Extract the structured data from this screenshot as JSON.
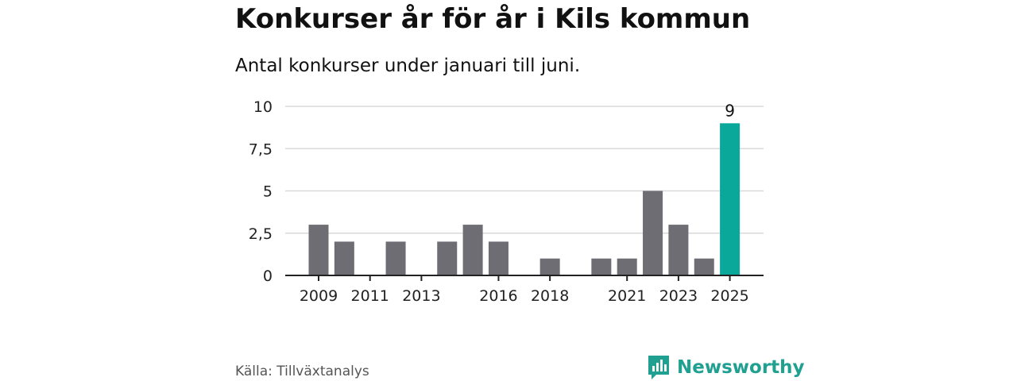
{
  "title": "Konkurser år för år i Kils kommun",
  "subtitle": "Antal konkurser under januari till juni.",
  "source": "Källa: Tillväxtanalys",
  "brand": "Newsworthy",
  "colors": {
    "bar": "#6e6d73",
    "highlight": "#0aa89a",
    "grid": "#d9d9d9",
    "axis": "#222222",
    "brand": "#20a090"
  },
  "chart_data": {
    "type": "bar",
    "title": "Konkurser år för år i Kils kommun",
    "subtitle": "Antal konkurser under januari till juni.",
    "categories": [
      "2009",
      "2010",
      "2011",
      "2012",
      "2013",
      "2014",
      "2015",
      "2016",
      "2017",
      "2018",
      "2019",
      "2020",
      "2021",
      "2022",
      "2023",
      "2024",
      "2025"
    ],
    "values": [
      3,
      2,
      0,
      2,
      0,
      2,
      3,
      2,
      0,
      1,
      0,
      1,
      1,
      5,
      3,
      1,
      9
    ],
    "highlight_index": 16,
    "data_labels": [
      {
        "index": 16,
        "text": "9"
      }
    ],
    "x_tick_labels": [
      "2009",
      "2011",
      "2013",
      "2016",
      "2018",
      "2021",
      "2023",
      "2025"
    ],
    "y_ticks": [
      0,
      2.5,
      5,
      7.5,
      10
    ],
    "y_tick_labels": [
      "0",
      "2,5",
      "5",
      "7,5",
      "10"
    ],
    "ylim": [
      0,
      10
    ],
    "grid": true
  }
}
